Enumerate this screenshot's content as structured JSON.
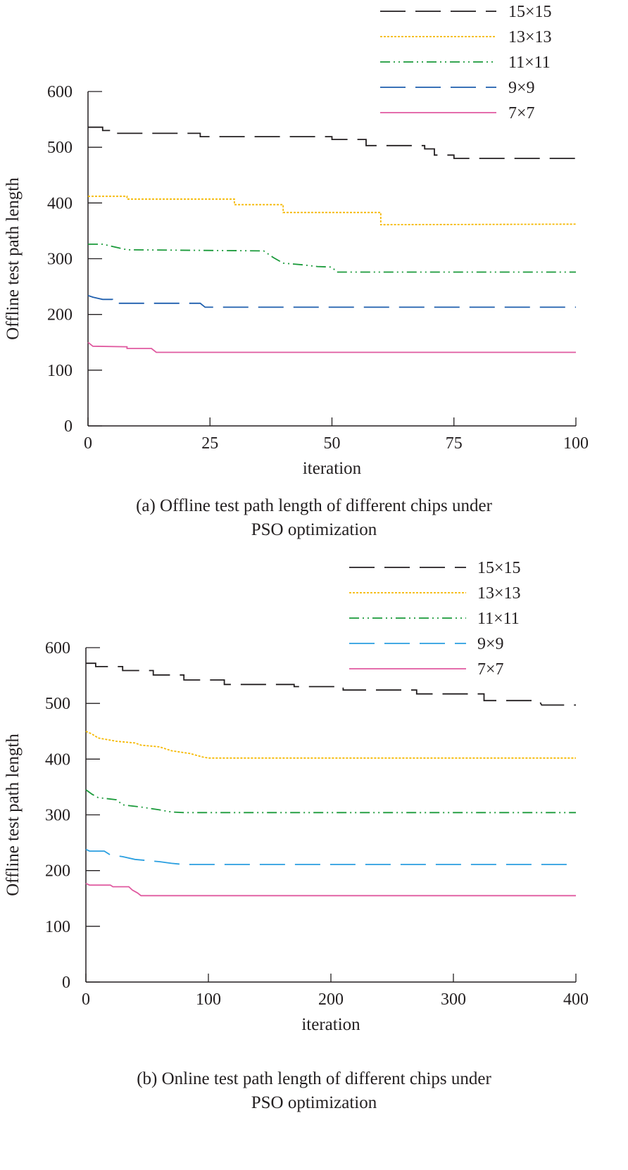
{
  "figure": {
    "captions": [
      {
        "line1": "(a)  Offline test path length of different chips under",
        "line2": "PSO optimization"
      },
      {
        "line1": "(b)  Online test path length of different chips under",
        "line2": "PSO optimization"
      }
    ]
  },
  "chart_data": [
    {
      "type": "line",
      "title": "",
      "xlabel": "iteration",
      "ylabel": "Offline test path length",
      "xlim": [
        0,
        100
      ],
      "ylim": [
        0,
        600
      ],
      "xticks": [
        0,
        25,
        50,
        75,
        100
      ],
      "yticks": [
        0,
        100,
        200,
        300,
        400,
        500,
        600
      ],
      "grid": false,
      "legend_position": "top-right",
      "series": [
        {
          "name": "15×15",
          "color": "#231f20",
          "dash": "long-dash",
          "points": [
            [
              0,
              536
            ],
            [
              3,
              536
            ],
            [
              3,
              530
            ],
            [
              5,
              530
            ],
            [
              5,
              525
            ],
            [
              23,
              525
            ],
            [
              23,
              519
            ],
            [
              50,
              519
            ],
            [
              50,
              514
            ],
            [
              57,
              514
            ],
            [
              57,
              503
            ],
            [
              69,
              503
            ],
            [
              69,
              497
            ],
            [
              71,
              497
            ],
            [
              71,
              486
            ],
            [
              75,
              486
            ],
            [
              75,
              480
            ],
            [
              100,
              480
            ]
          ]
        },
        {
          "name": "13×13",
          "color": "#f5b800",
          "dash": "dotted",
          "points": [
            [
              0,
              412
            ],
            [
              8,
              412
            ],
            [
              8,
              407
            ],
            [
              30,
              407
            ],
            [
              30,
              397
            ],
            [
              40,
              397
            ],
            [
              40,
              383
            ],
            [
              60,
              383
            ],
            [
              60,
              361
            ],
            [
              100,
              362
            ]
          ]
        },
        {
          "name": "11×11",
          "color": "#1a9a3a",
          "dash": "dash-dot-dot",
          "points": [
            [
              0,
              326
            ],
            [
              3,
              326
            ],
            [
              8,
              316
            ],
            [
              36,
              314
            ],
            [
              38,
              302
            ],
            [
              40,
              292
            ],
            [
              44,
              289
            ],
            [
              47,
              286
            ],
            [
              50,
              285
            ],
            [
              51,
              276
            ],
            [
              100,
              276
            ]
          ]
        },
        {
          "name": "9×9",
          "color": "#1f5fae",
          "dash": "long-dash",
          "points": [
            [
              0,
              234
            ],
            [
              1,
              231
            ],
            [
              2,
              229
            ],
            [
              3,
              227
            ],
            [
              5,
              227
            ],
            [
              5,
              220
            ],
            [
              23,
              220
            ],
            [
              24,
              213
            ],
            [
              100,
              213
            ]
          ]
        },
        {
          "name": "7×7",
          "color": "#e05aa0",
          "dash": "solid",
          "points": [
            [
              0,
              150
            ],
            [
              1,
              143
            ],
            [
              8,
              142
            ],
            [
              8,
              139
            ],
            [
              13,
              139
            ],
            [
              14,
              132
            ],
            [
              100,
              132
            ]
          ]
        }
      ]
    },
    {
      "type": "line",
      "title": "",
      "xlabel": "iteration",
      "ylabel": "Offline test path length",
      "xlim": [
        0,
        400
      ],
      "ylim": [
        0,
        600
      ],
      "xticks": [
        0,
        100,
        200,
        300,
        400
      ],
      "yticks": [
        0,
        100,
        200,
        300,
        400,
        500,
        600
      ],
      "grid": false,
      "legend_position": "top-right",
      "series": [
        {
          "name": "15×15",
          "color": "#231f20",
          "dash": "long-dash",
          "points": [
            [
              0,
              572
            ],
            [
              8,
              572
            ],
            [
              8,
              566
            ],
            [
              30,
              566
            ],
            [
              30,
              559
            ],
            [
              55,
              559
            ],
            [
              55,
              551
            ],
            [
              80,
              551
            ],
            [
              80,
              542
            ],
            [
              113,
              542
            ],
            [
              113,
              534
            ],
            [
              170,
              534
            ],
            [
              170,
              530
            ],
            [
              210,
              530
            ],
            [
              210,
              524
            ],
            [
              270,
              524
            ],
            [
              270,
              517
            ],
            [
              325,
              517
            ],
            [
              325,
              505
            ],
            [
              370,
              505
            ],
            [
              372,
              497
            ],
            [
              400,
              497
            ]
          ]
        },
        {
          "name": "13×13",
          "color": "#f5b800",
          "dash": "dotted",
          "points": [
            [
              0,
              450
            ],
            [
              5,
              445
            ],
            [
              10,
              438
            ],
            [
              25,
              432
            ],
            [
              40,
              429
            ],
            [
              45,
              425
            ],
            [
              60,
              422
            ],
            [
              70,
              415
            ],
            [
              85,
              410
            ],
            [
              95,
              404
            ],
            [
              100,
              402
            ],
            [
              400,
              402
            ]
          ]
        },
        {
          "name": "11×11",
          "color": "#1a9a3a",
          "dash": "dash-dot-dot",
          "points": [
            [
              0,
              345
            ],
            [
              5,
              337
            ],
            [
              10,
              331
            ],
            [
              25,
              327
            ],
            [
              30,
              318
            ],
            [
              45,
              314
            ],
            [
              60,
              309
            ],
            [
              70,
              305
            ],
            [
              80,
              304
            ],
            [
              400,
              304
            ]
          ]
        },
        {
          "name": "9×9",
          "color": "#2a9fe0",
          "dash": "long-dash",
          "points": [
            [
              0,
              238
            ],
            [
              3,
              235
            ],
            [
              15,
              235
            ],
            [
              20,
              228
            ],
            [
              30,
              225
            ],
            [
              40,
              220
            ],
            [
              60,
              216
            ],
            [
              70,
              213
            ],
            [
              80,
              211
            ],
            [
              400,
              211
            ]
          ]
        },
        {
          "name": "7×7",
          "color": "#e05aa0",
          "dash": "solid",
          "points": [
            [
              0,
              177
            ],
            [
              3,
              174
            ],
            [
              20,
              174
            ],
            [
              22,
              171
            ],
            [
              35,
              171
            ],
            [
              38,
              165
            ],
            [
              42,
              160
            ],
            [
              45,
              155
            ],
            [
              400,
              155
            ]
          ]
        }
      ]
    }
  ]
}
